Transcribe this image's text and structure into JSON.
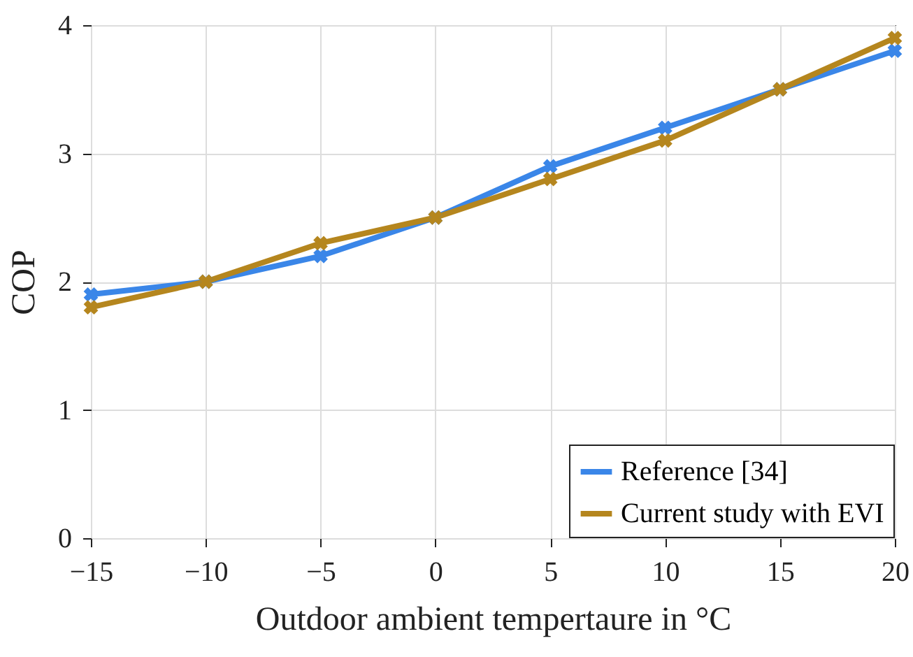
{
  "chart_data": {
    "type": "line",
    "xlabel": "Outdoor ambient tempertaure in °C",
    "ylabel": "COP",
    "x": [
      -15,
      -10,
      -5,
      0,
      5,
      10,
      15,
      20
    ],
    "series": [
      {
        "name": "Reference [34]",
        "color": "#3a86e8",
        "values": [
          1.9,
          2.0,
          2.2,
          2.5,
          2.9,
          3.2,
          3.5,
          3.8
        ]
      },
      {
        "name": "Current study with EVI",
        "color": "#b5861e",
        "values": [
          1.8,
          2.0,
          2.3,
          2.5,
          2.8,
          3.1,
          3.5,
          3.9
        ]
      }
    ],
    "xlim": [
      -15,
      20
    ],
    "xticks": [
      -15,
      -10,
      -5,
      0,
      5,
      10,
      15,
      20
    ],
    "ylim": [
      0,
      4
    ],
    "yticks": [
      0,
      1,
      2,
      3,
      4
    ],
    "grid": true,
    "legend": "bottom right",
    "marker": "cross",
    "line_style": "solid"
  }
}
